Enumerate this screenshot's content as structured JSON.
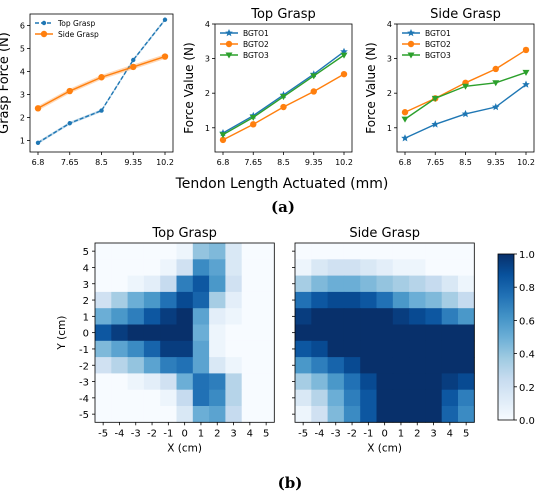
{
  "figure": {
    "panel_a_label": "(a)",
    "panel_b_label": "(b)",
    "shared_xlabel": "Tendon Length Actuated (mm)"
  },
  "chart_data": [
    {
      "type": "line",
      "title": "",
      "xlabel": "",
      "ylabel": "Grasp Force (N)",
      "categories": [
        "6.8",
        "7.65",
        "8.5",
        "9.35",
        "10.2"
      ],
      "ylim": [
        0.5,
        6.5
      ],
      "yticks": [
        1,
        2,
        3,
        4,
        5,
        6
      ],
      "legend": "top-left",
      "series": [
        {
          "name": "Top Grasp",
          "color": "#1f77b4",
          "dashed": true,
          "marker": "dot",
          "values": [
            0.9,
            1.75,
            2.3,
            4.5,
            6.25
          ]
        },
        {
          "name": "Side Grasp",
          "color": "#ff7f0e",
          "dashed": false,
          "marker": "circle",
          "values": [
            2.4,
            3.15,
            3.75,
            4.2,
            4.65
          ]
        }
      ]
    },
    {
      "type": "line",
      "title": "Top Grasp",
      "xlabel": "",
      "ylabel": "Force Value (N)",
      "categories": [
        "6.8",
        "7.65",
        "8.5",
        "9.35",
        "10.2"
      ],
      "ylim": [
        0.3,
        4.0
      ],
      "yticks": [
        1,
        2,
        3,
        4
      ],
      "legend": "top-left",
      "series": [
        {
          "name": "BGTO1",
          "color": "#1f77b4",
          "marker": "star",
          "values": [
            0.85,
            1.35,
            1.95,
            2.55,
            3.2
          ]
        },
        {
          "name": "BGTO2",
          "color": "#ff7f0e",
          "marker": "circle",
          "values": [
            0.65,
            1.1,
            1.6,
            2.05,
            2.55
          ]
        },
        {
          "name": "BGTO3",
          "color": "#2ca02c",
          "marker": "triangle",
          "values": [
            0.8,
            1.3,
            1.9,
            2.5,
            3.1
          ]
        }
      ]
    },
    {
      "type": "line",
      "title": "Side Grasp",
      "xlabel": "",
      "ylabel": "Force Value (N)",
      "categories": [
        "6.8",
        "7.65",
        "8.5",
        "9.35",
        "10.2"
      ],
      "ylim": [
        0.3,
        4.0
      ],
      "yticks": [
        1,
        2,
        3,
        4
      ],
      "legend": "top-left",
      "series": [
        {
          "name": "BGTO1",
          "color": "#1f77b4",
          "marker": "star",
          "values": [
            0.7,
            1.1,
            1.4,
            1.6,
            2.25
          ]
        },
        {
          "name": "BGTO2",
          "color": "#ff7f0e",
          "marker": "circle",
          "values": [
            1.45,
            1.85,
            2.3,
            2.7,
            3.25
          ]
        },
        {
          "name": "BGTO3",
          "color": "#2ca02c",
          "marker": "triangle",
          "values": [
            1.25,
            1.85,
            2.2,
            2.3,
            2.6
          ]
        }
      ]
    },
    {
      "type": "heatmap",
      "title": "Top Grasp",
      "xlabel": "X (cm)",
      "ylabel": "Y (cm)",
      "x": [
        -5,
        -4,
        -3,
        -2,
        -1,
        0,
        1,
        2,
        3,
        4,
        5
      ],
      "y": [
        5,
        4,
        3,
        2,
        1,
        0,
        -1,
        -2,
        -3,
        -4,
        -5
      ],
      "values": [
        [
          0.0,
          0.0,
          0.0,
          0.0,
          0.0,
          0.05,
          0.4,
          0.45,
          0.15,
          0.0,
          0.0
        ],
        [
          0.0,
          0.0,
          0.0,
          0.0,
          0.05,
          0.2,
          0.65,
          0.55,
          0.15,
          0.0,
          0.0
        ],
        [
          0.0,
          0.0,
          0.05,
          0.1,
          0.25,
          0.7,
          0.85,
          0.6,
          0.2,
          0.0,
          0.0
        ],
        [
          0.2,
          0.35,
          0.5,
          0.6,
          0.75,
          0.9,
          0.8,
          0.35,
          0.1,
          0.0,
          0.0
        ],
        [
          0.5,
          0.6,
          0.7,
          0.85,
          0.95,
          1.0,
          0.55,
          0.1,
          0.05,
          0.0,
          0.0
        ],
        [
          0.85,
          0.95,
          1.0,
          1.0,
          1.0,
          1.0,
          0.5,
          0.05,
          0.0,
          0.0,
          0.0
        ],
        [
          0.45,
          0.55,
          0.65,
          0.8,
          0.95,
          0.95,
          0.55,
          0.05,
          0.0,
          0.0,
          0.0
        ],
        [
          0.2,
          0.3,
          0.4,
          0.55,
          0.7,
          0.75,
          0.55,
          0.15,
          0.05,
          0.0,
          0.0
        ],
        [
          0.0,
          0.0,
          0.05,
          0.1,
          0.2,
          0.5,
          0.75,
          0.7,
          0.3,
          0.0,
          0.0
        ],
        [
          0.0,
          0.0,
          0.0,
          0.0,
          0.05,
          0.25,
          0.75,
          0.65,
          0.3,
          0.0,
          0.0
        ],
        [
          0.0,
          0.0,
          0.0,
          0.0,
          0.0,
          0.15,
          0.5,
          0.55,
          0.25,
          0.0,
          0.0
        ]
      ],
      "vmin": 0.0,
      "vmax": 1.0
    },
    {
      "type": "heatmap",
      "title": "Side Grasp",
      "xlabel": "X (cm)",
      "ylabel": "",
      "x": [
        -5,
        -4,
        -3,
        -2,
        -1,
        0,
        1,
        2,
        3,
        4,
        5
      ],
      "y": [
        5,
        4,
        3,
        2,
        1,
        0,
        -1,
        -2,
        -3,
        -4,
        -5
      ],
      "values": [
        [
          0.0,
          0.0,
          0.0,
          0.0,
          0.0,
          0.0,
          0.0,
          0.0,
          0.0,
          0.0,
          0.0
        ],
        [
          0.05,
          0.15,
          0.2,
          0.2,
          0.15,
          0.1,
          0.05,
          0.05,
          0.0,
          0.0,
          0.0
        ],
        [
          0.35,
          0.45,
          0.5,
          0.5,
          0.45,
          0.4,
          0.35,
          0.3,
          0.25,
          0.15,
          0.05
        ],
        [
          0.75,
          0.85,
          0.9,
          0.9,
          0.85,
          0.75,
          0.6,
          0.5,
          0.45,
          0.35,
          0.25
        ],
        [
          0.95,
          1.0,
          1.0,
          1.0,
          1.0,
          1.0,
          0.95,
          0.9,
          0.85,
          0.7,
          0.6
        ],
        [
          1.0,
          1.0,
          1.0,
          1.0,
          1.0,
          1.0,
          1.0,
          1.0,
          1.0,
          1.0,
          1.0
        ],
        [
          0.85,
          0.9,
          1.0,
          1.0,
          1.0,
          1.0,
          1.0,
          1.0,
          1.0,
          1.0,
          1.0
        ],
        [
          0.6,
          0.7,
          0.8,
          0.9,
          1.0,
          1.0,
          1.0,
          1.0,
          1.0,
          1.0,
          1.0
        ],
        [
          0.35,
          0.45,
          0.6,
          0.75,
          0.9,
          1.0,
          1.0,
          1.0,
          1.0,
          0.95,
          0.9
        ],
        [
          0.15,
          0.3,
          0.5,
          0.7,
          0.85,
          1.0,
          1.0,
          1.0,
          1.0,
          0.85,
          0.7
        ],
        [
          0.05,
          0.2,
          0.45,
          0.65,
          0.85,
          1.0,
          1.0,
          1.0,
          1.0,
          0.8,
          0.65
        ]
      ],
      "vmin": 0.0,
      "vmax": 1.0
    }
  ],
  "colorbar": {
    "ticks": [
      "0.0",
      "0.2",
      "0.4",
      "0.6",
      "0.8",
      "1.0"
    ],
    "colormap": [
      "#f7fbff",
      "#deebf7",
      "#c6dbef",
      "#9ecae1",
      "#6baed6",
      "#4292c6",
      "#2171b5",
      "#08519c",
      "#08306b"
    ]
  }
}
